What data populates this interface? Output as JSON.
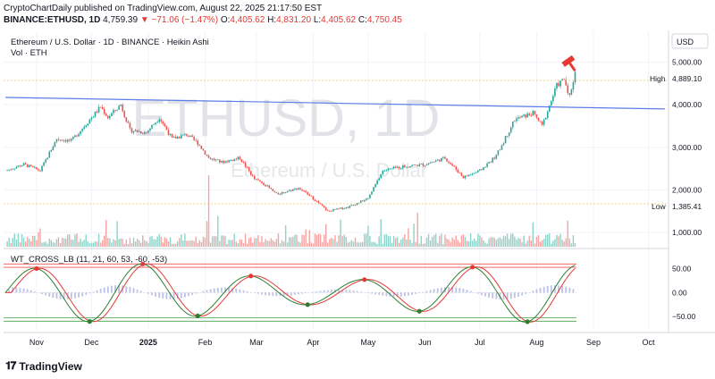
{
  "header": {
    "line1": "CryptoChartDaily published on TradingView.com, August 22, 2025 21:17:50 EST",
    "symbol_prefix": "BINANCE:ETHUSD, 1D",
    "last": "4,759.39",
    "change_arrow": "▼",
    "change": "−71.06 (−1.47%)",
    "o_label": "O:",
    "o": "4,405.62",
    "h_label": "H:",
    "h": "4,831.20",
    "l_label": "L:",
    "l": "4,405.62",
    "c_label": "C:",
    "c": "4,750.45"
  },
  "legend": {
    "title": "Ethereum / U.S. Dollar · 1D · BINANCE · Heikin Ashi",
    "volume": "Vol · ETH",
    "oscillator": "WT_CROSS_LB (11, 21, 60, 53, -60, -53)"
  },
  "watermark": {
    "big": "ETHUSD, 1D",
    "small": "Ethereum / U.S. Dollar"
  },
  "currency": "USD",
  "brand": "TradingView",
  "colors": {
    "up": "#26a69a",
    "down": "#ef5350",
    "trend": "#5b7ee8",
    "wt1": "#2e7d32",
    "wt2": "#e53935",
    "hist": "#9fa8da"
  },
  "chart_data": {
    "type": "candlestick",
    "x_ticks": [
      "Nov",
      "Dec",
      "2025",
      "Feb",
      "Mar",
      "Apr",
      "May",
      "Jun",
      "Jul",
      "Aug",
      "Sep",
      "Oct"
    ],
    "y_ticks": [
      "5,000.00",
      "4,000.00",
      "3,000.00",
      "2,000.00",
      "1,000.00"
    ],
    "ylim": [
      900,
      5700
    ],
    "high_label": "High",
    "high": "4,889.10",
    "low_label": "Low",
    "low": "1,385.41",
    "price_path": [
      [
        "2024-10-15",
        2450
      ],
      [
        "2024-10-25",
        2600
      ],
      [
        "2024-11-03",
        2450
      ],
      [
        "2024-11-12",
        3200
      ],
      [
        "2024-11-20",
        3150
      ],
      [
        "2024-11-27",
        3500
      ],
      [
        "2024-12-06",
        3950
      ],
      [
        "2024-12-10",
        3700
      ],
      [
        "2024-12-17",
        4000
      ],
      [
        "2024-12-22",
        3400
      ],
      [
        "2024-12-31",
        3350
      ],
      [
        "2025-01-07",
        3700
      ],
      [
        "2025-01-14",
        3200
      ],
      [
        "2025-01-22",
        3300
      ],
      [
        "2025-01-28",
        3100
      ],
      [
        "2025-02-03",
        2750
      ],
      [
        "2025-02-10",
        2650
      ],
      [
        "2025-02-20",
        2750
      ],
      [
        "2025-02-28",
        2250
      ],
      [
        "2025-03-05",
        2150
      ],
      [
        "2025-03-12",
        1900
      ],
      [
        "2025-03-24",
        2050
      ],
      [
        "2025-04-01",
        1800
      ],
      [
        "2025-04-09",
        1500
      ],
      [
        "2025-04-20",
        1600
      ],
      [
        "2025-05-01",
        1800
      ],
      [
        "2025-05-09",
        2450
      ],
      [
        "2025-05-20",
        2550
      ],
      [
        "2025-06-01",
        2600
      ],
      [
        "2025-06-12",
        2750
      ],
      [
        "2025-06-22",
        2300
      ],
      [
        "2025-07-01",
        2450
      ],
      [
        "2025-07-10",
        2800
      ],
      [
        "2025-07-20",
        3650
      ],
      [
        "2025-07-30",
        3800
      ],
      [
        "2025-08-04",
        3500
      ],
      [
        "2025-08-12",
        4450
      ],
      [
        "2025-08-16",
        4600
      ],
      [
        "2025-08-19",
        4200
      ],
      [
        "2025-08-22",
        4750
      ]
    ],
    "trendline": [
      [
        "2024-10-15",
        4170
      ],
      [
        "2025-10-10",
        3900
      ]
    ],
    "oscillator": {
      "y_ticks": [
        "50.00",
        "0.00",
        "−50.00"
      ],
      "ylim": [
        -80,
        85
      ],
      "overbought": [
        60,
        53
      ],
      "oversold": [
        -60,
        -53
      ]
    }
  }
}
